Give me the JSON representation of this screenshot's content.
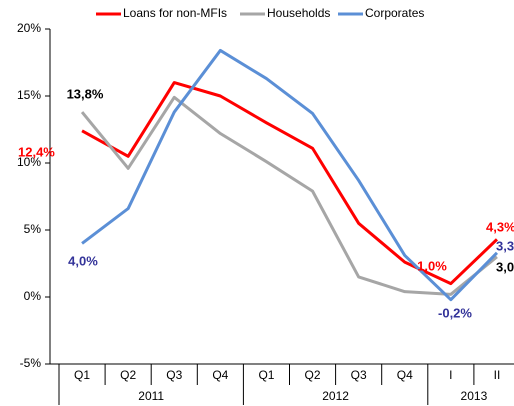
{
  "chart_data": {
    "type": "line",
    "categories": [
      "Q1",
      "Q2",
      "Q3",
      "Q4",
      "Q1",
      "Q2",
      "Q3",
      "Q4",
      "I",
      "II"
    ],
    "groups": [
      {
        "label": "2011",
        "span": 4
      },
      {
        "label": "2012",
        "span": 4
      },
      {
        "label": "2013",
        "span": 2
      }
    ],
    "series": [
      {
        "name": "Loans for non-MFIs",
        "color": "#ff0000",
        "label_color": "#ff0000",
        "values": [
          12.4,
          10.5,
          16.0,
          15.0,
          13.0,
          11.1,
          5.5,
          2.6,
          1.0,
          4.3
        ],
        "value_labels": [
          "12,4%",
          null,
          null,
          null,
          null,
          null,
          null,
          null,
          "1,0%",
          "4,3%"
        ]
      },
      {
        "name": "Households",
        "color": "#a6a6a6",
        "label_color": "#000000",
        "values": [
          13.8,
          9.6,
          14.9,
          12.2,
          10.1,
          7.9,
          1.5,
          0.4,
          0.2,
          3.0
        ],
        "value_labels": [
          "13,8%",
          null,
          null,
          null,
          null,
          null,
          null,
          null,
          null,
          "3,0"
        ]
      },
      {
        "name": "Corporates",
        "color": "#5b8fd6",
        "label_color": "#333399",
        "values": [
          4.0,
          6.6,
          13.8,
          18.4,
          16.3,
          13.7,
          8.7,
          3.1,
          -0.2,
          3.3
        ],
        "value_labels": [
          "4,0%",
          null,
          null,
          null,
          null,
          null,
          null,
          null,
          "-0,2%",
          "3,3"
        ]
      }
    ],
    "ylim": [
      -5,
      20
    ],
    "yticks": [
      {
        "value": -5,
        "label": "-5%"
      },
      {
        "value": 0,
        "label": "0%"
      },
      {
        "value": 5,
        "label": "5%"
      },
      {
        "value": 10,
        "label": "10%"
      },
      {
        "value": 15,
        "label": "15%"
      },
      {
        "value": 20,
        "label": "20%"
      }
    ],
    "legend": "top"
  }
}
